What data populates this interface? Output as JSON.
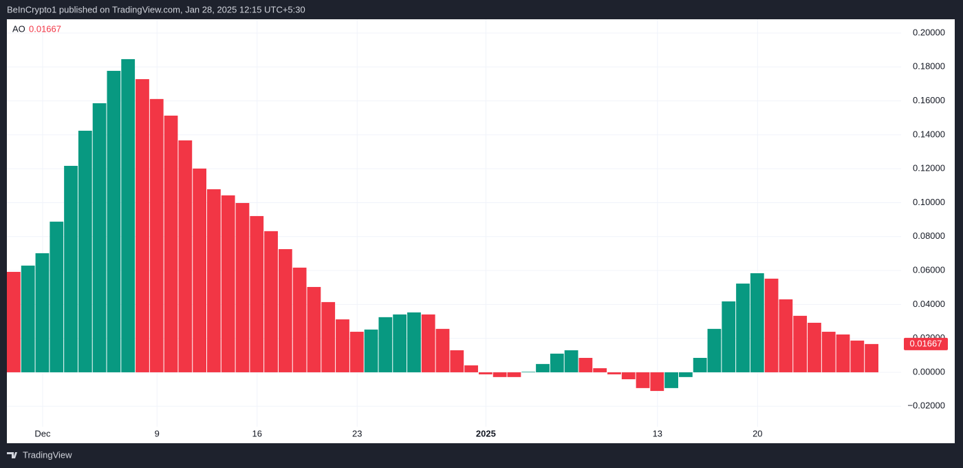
{
  "header": "BeInCrypto1 published on TradingView.com, Jan 28, 2025 12:15 UTC+5:30",
  "footer": "TradingView",
  "chart_data": {
    "type": "bar",
    "name": "AO",
    "rising_color": "#089981",
    "falling_color": "#f23645",
    "categories": [
      null,
      null,
      "Dec",
      null,
      null,
      null,
      null,
      null,
      null,
      null,
      "9",
      null,
      null,
      null,
      null,
      null,
      null,
      "16",
      null,
      null,
      null,
      null,
      null,
      null,
      "23",
      null,
      null,
      null,
      null,
      null,
      null,
      null,
      null,
      "2025",
      null,
      null,
      null,
      null,
      null,
      null,
      null,
      null,
      null,
      null,
      null,
      "13",
      null,
      null,
      null,
      null,
      null,
      null,
      "20",
      null,
      null,
      null,
      null,
      null,
      null,
      null,
      null
    ],
    "values": [
      0.0592,
      0.0629,
      0.0702,
      0.0888,
      0.1217,
      0.1424,
      0.1586,
      0.1777,
      0.1846,
      0.1728,
      0.1611,
      0.1513,
      0.1367,
      0.1201,
      0.1079,
      0.1043,
      0.0998,
      0.0921,
      0.0832,
      0.0726,
      0.0617,
      0.0503,
      0.0414,
      0.0312,
      0.0239,
      0.0252,
      0.0325,
      0.0341,
      0.0353,
      0.0341,
      0.0256,
      0.013,
      0.0041,
      -0.0012,
      -0.0028,
      -0.0028,
      0.0003,
      0.0049,
      0.011,
      0.013,
      0.0085,
      0.0024,
      -0.0012,
      -0.0041,
      -0.0093,
      -0.011,
      -0.0093,
      -0.0028,
      0.0085,
      0.0256,
      0.0418,
      0.0523,
      0.0584,
      0.0552,
      0.043,
      0.0333,
      0.0292,
      0.0239,
      0.0223,
      0.0187,
      0.01667
    ],
    "ylim": [
      -0.0414,
      0.2081
    ],
    "yticks": [
      {
        "value": -0.02,
        "label": "−0.02000"
      },
      {
        "value": 0,
        "label": "0.00000"
      },
      {
        "value": 0.02,
        "label": "0.02000"
      },
      {
        "value": 0.04,
        "label": "0.04000"
      },
      {
        "value": 0.06,
        "label": "0.06000"
      },
      {
        "value": 0.08,
        "label": "0.08000"
      },
      {
        "value": 0.1,
        "label": "0.10000"
      },
      {
        "value": 0.12,
        "label": "0.12000"
      },
      {
        "value": 0.14,
        "label": "0.14000"
      },
      {
        "value": 0.16,
        "label": "0.16000"
      },
      {
        "value": 0.18,
        "label": "0.18000"
      },
      {
        "value": 0.2,
        "label": "0.20000"
      }
    ],
    "grid": true
  }
}
